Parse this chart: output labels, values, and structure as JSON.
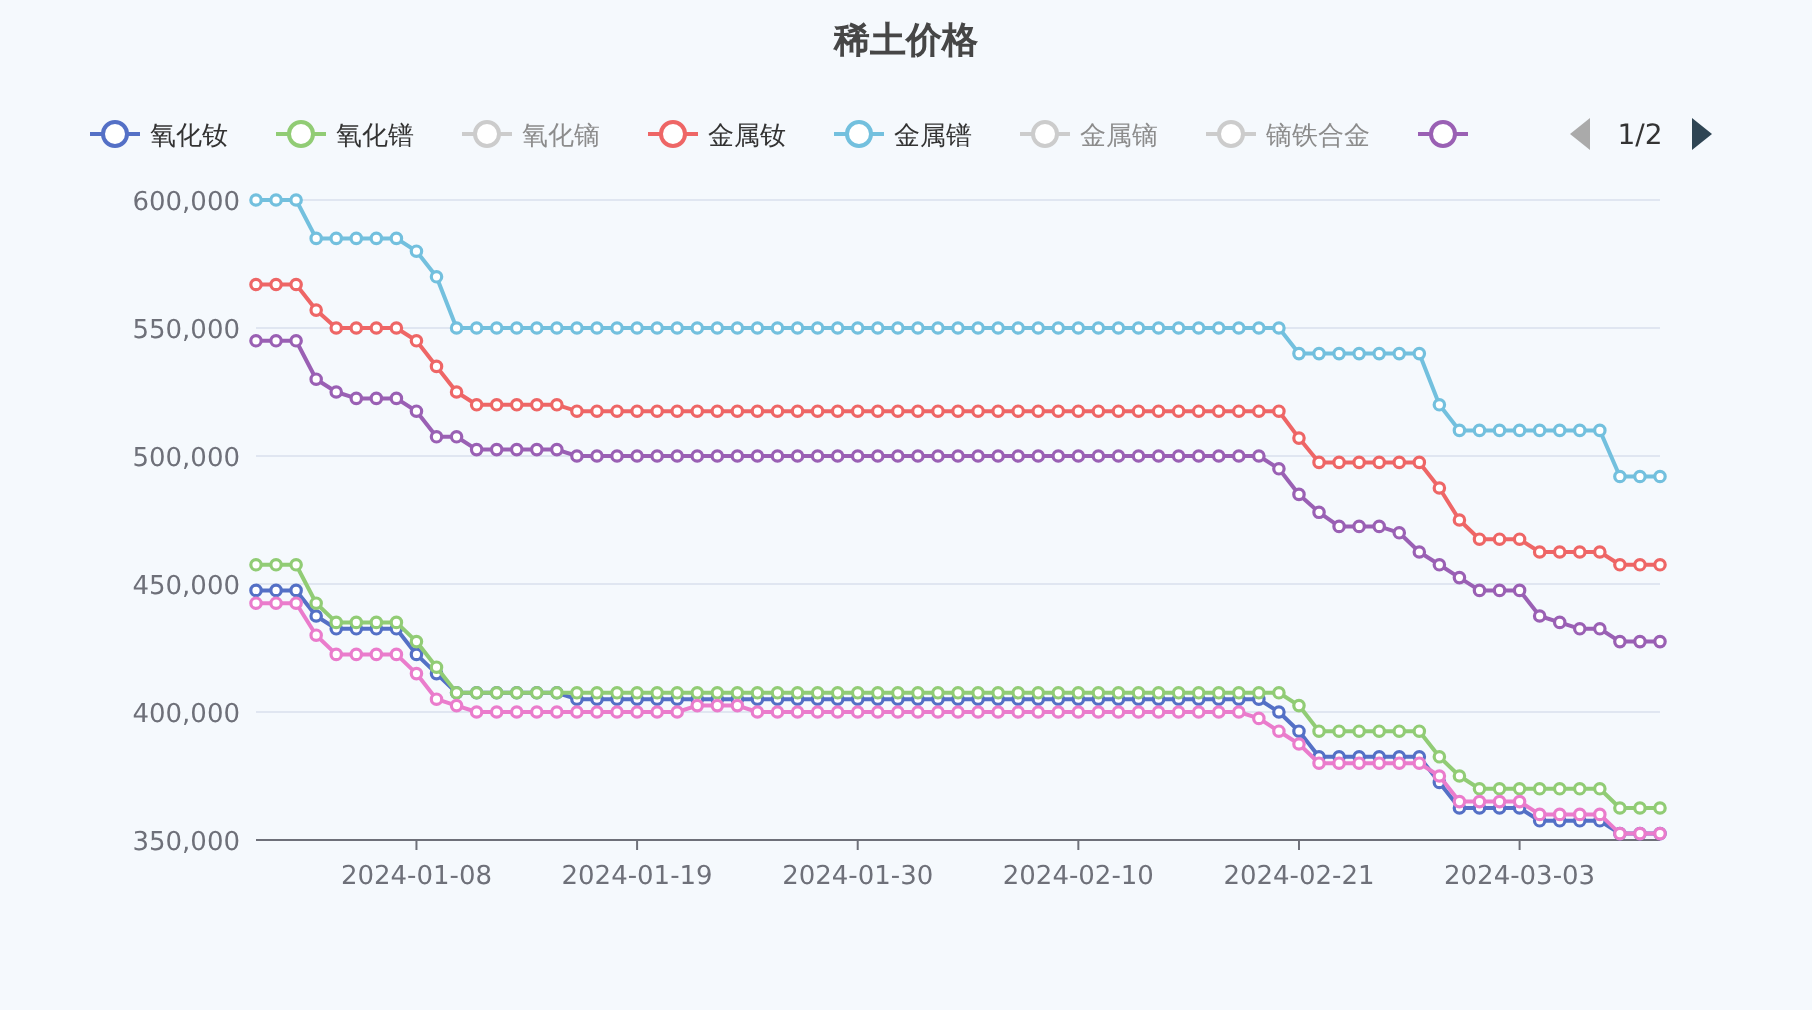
{
  "chart_data": {
    "type": "line",
    "title": "稀土价格",
    "x": [
      "2023-12-31",
      "2024-01-01",
      "2024-01-02",
      "2024-01-03",
      "2024-01-04",
      "2024-01-05",
      "2024-01-06",
      "2024-01-07",
      "2024-01-08",
      "2024-01-09",
      "2024-01-10",
      "2024-01-11",
      "2024-01-12",
      "2024-01-13",
      "2024-01-14",
      "2024-01-15",
      "2024-01-16",
      "2024-01-17",
      "2024-01-18",
      "2024-01-19",
      "2024-01-20",
      "2024-01-21",
      "2024-01-22",
      "2024-01-23",
      "2024-01-24",
      "2024-01-25",
      "2024-01-26",
      "2024-01-27",
      "2024-01-28",
      "2024-01-29",
      "2024-01-30",
      "2024-01-31",
      "2024-02-01",
      "2024-02-02",
      "2024-02-03",
      "2024-02-04",
      "2024-02-05",
      "2024-02-06",
      "2024-02-07",
      "2024-02-08",
      "2024-02-09",
      "2024-02-10",
      "2024-02-11",
      "2024-02-12",
      "2024-02-13",
      "2024-02-14",
      "2024-02-15",
      "2024-02-16",
      "2024-02-17",
      "2024-02-18",
      "2024-02-19",
      "2024-02-20",
      "2024-02-21",
      "2024-02-22",
      "2024-02-23",
      "2024-02-24",
      "2024-02-25",
      "2024-02-26",
      "2024-02-27",
      "2024-02-28",
      "2024-02-29",
      "2024-03-01",
      "2024-03-02",
      "2024-03-03",
      "2024-03-04",
      "2024-03-05",
      "2024-03-06",
      "2024-03-07",
      "2024-03-08",
      "2024-03-09",
      "2024-03-10"
    ],
    "series": [
      {
        "name": "氧化钕",
        "color": "#5470c6",
        "values": [
          447500,
          447500,
          447500,
          437500,
          432500,
          432500,
          432500,
          432500,
          422500,
          415000,
          407500,
          407500,
          407500,
          407500,
          407500,
          407500,
          405000,
          405000,
          405000,
          405000,
          405000,
          405000,
          405000,
          405000,
          405000,
          405000,
          405000,
          405000,
          405000,
          405000,
          405000,
          405000,
          405000,
          405000,
          405000,
          405000,
          405000,
          405000,
          405000,
          405000,
          405000,
          405000,
          405000,
          405000,
          405000,
          405000,
          405000,
          405000,
          405000,
          405000,
          405000,
          400000,
          392500,
          382500,
          382500,
          382500,
          382500,
          382500,
          382500,
          372500,
          362500,
          362500,
          362500,
          362500,
          357500,
          357500,
          357500,
          357500,
          352500,
          352500,
          352500
        ]
      },
      {
        "name": "氧化镨",
        "color": "#91cc75",
        "values": [
          457500,
          457500,
          457500,
          442500,
          435000,
          435000,
          435000,
          435000,
          427500,
          417500,
          407500,
          407500,
          407500,
          407500,
          407500,
          407500,
          407500,
          407500,
          407500,
          407500,
          407500,
          407500,
          407500,
          407500,
          407500,
          407500,
          407500,
          407500,
          407500,
          407500,
          407500,
          407500,
          407500,
          407500,
          407500,
          407500,
          407500,
          407500,
          407500,
          407500,
          407500,
          407500,
          407500,
          407500,
          407500,
          407500,
          407500,
          407500,
          407500,
          407500,
          407500,
          407500,
          402500,
          392500,
          392500,
          392500,
          392500,
          392500,
          392500,
          382500,
          375000,
          370000,
          370000,
          370000,
          370000,
          370000,
          370000,
          370000,
          362500,
          362500,
          362500
        ]
      },
      {
        "name": "氧化镝",
        "color": "#cccccc",
        "values": [
          null,
          null,
          null,
          null,
          null,
          null,
          null,
          null,
          null,
          null,
          null,
          null,
          null,
          null,
          null,
          null,
          null,
          null,
          null,
          null,
          null,
          null,
          null,
          null,
          null,
          null,
          null,
          null,
          null,
          null,
          null,
          null,
          null,
          null,
          null,
          null,
          null,
          null,
          null,
          null,
          null,
          null,
          null,
          null,
          null,
          null,
          null,
          null,
          null,
          null,
          null,
          null,
          null,
          null,
          null,
          null,
          null,
          null,
          null,
          null,
          null,
          null,
          null,
          null,
          null,
          null,
          null,
          null,
          null,
          null,
          null
        ]
      },
      {
        "name": "金属钕",
        "color": "#ee6666",
        "values": [
          567000,
          567000,
          567000,
          557000,
          550000,
          550000,
          550000,
          550000,
          545000,
          535000,
          525000,
          520000,
          520000,
          520000,
          520000,
          520000,
          517500,
          517500,
          517500,
          517500,
          517500,
          517500,
          517500,
          517500,
          517500,
          517500,
          517500,
          517500,
          517500,
          517500,
          517500,
          517500,
          517500,
          517500,
          517500,
          517500,
          517500,
          517500,
          517500,
          517500,
          517500,
          517500,
          517500,
          517500,
          517500,
          517500,
          517500,
          517500,
          517500,
          517500,
          517500,
          517500,
          507000,
          497500,
          497500,
          497500,
          497500,
          497500,
          497500,
          487500,
          475000,
          467500,
          467500,
          467500,
          462500,
          462500,
          462500,
          462500,
          457500,
          457500,
          457500
        ]
      },
      {
        "name": "金属镨",
        "color": "#73c0de",
        "values": [
          600000,
          600000,
          600000,
          585000,
          585000,
          585000,
          585000,
          585000,
          580000,
          570000,
          550000,
          550000,
          550000,
          550000,
          550000,
          550000,
          550000,
          550000,
          550000,
          550000,
          550000,
          550000,
          550000,
          550000,
          550000,
          550000,
          550000,
          550000,
          550000,
          550000,
          550000,
          550000,
          550000,
          550000,
          550000,
          550000,
          550000,
          550000,
          550000,
          550000,
          550000,
          550000,
          550000,
          550000,
          550000,
          550000,
          550000,
          550000,
          550000,
          550000,
          550000,
          550000,
          540000,
          540000,
          540000,
          540000,
          540000,
          540000,
          540000,
          520000,
          510000,
          510000,
          510000,
          510000,
          510000,
          510000,
          510000,
          510000,
          492000,
          492000,
          492000
        ]
      },
      {
        "name": "金属镝",
        "color": "#cccccc",
        "values": [
          null,
          null,
          null,
          null,
          null,
          null,
          null,
          null,
          null,
          null,
          null,
          null,
          null,
          null,
          null,
          null,
          null,
          null,
          null,
          null,
          null,
          null,
          null,
          null,
          null,
          null,
          null,
          null,
          null,
          null,
          null,
          null,
          null,
          null,
          null,
          null,
          null,
          null,
          null,
          null,
          null,
          null,
          null,
          null,
          null,
          null,
          null,
          null,
          null,
          null,
          null,
          null,
          null,
          null,
          null,
          null,
          null,
          null,
          null,
          null,
          null,
          null,
          null,
          null,
          null,
          null,
          null,
          null,
          null,
          null,
          null
        ]
      },
      {
        "name": "镝铁合金",
        "color": "#cccccc",
        "values": [
          null,
          null,
          null,
          null,
          null,
          null,
          null,
          null,
          null,
          null,
          null,
          null,
          null,
          null,
          null,
          null,
          null,
          null,
          null,
          null,
          null,
          null,
          null,
          null,
          null,
          null,
          null,
          null,
          null,
          null,
          null,
          null,
          null,
          null,
          null,
          null,
          null,
          null,
          null,
          null,
          null,
          null,
          null,
          null,
          null,
          null,
          null,
          null,
          null,
          null,
          null,
          null,
          null,
          null,
          null,
          null,
          null,
          null,
          null,
          null,
          null,
          null,
          null,
          null,
          null,
          null,
          null,
          null,
          null,
          null,
          null
        ]
      },
      {
        "color": "#9a60b4",
        "values": [
          545000,
          545000,
          545000,
          530000,
          525000,
          522500,
          522500,
          522500,
          517500,
          507500,
          507500,
          502500,
          502500,
          502500,
          502500,
          502500,
          500000,
          500000,
          500000,
          500000,
          500000,
          500000,
          500000,
          500000,
          500000,
          500000,
          500000,
          500000,
          500000,
          500000,
          500000,
          500000,
          500000,
          500000,
          500000,
          500000,
          500000,
          500000,
          500000,
          500000,
          500000,
          500000,
          500000,
          500000,
          500000,
          500000,
          500000,
          500000,
          500000,
          500000,
          500000,
          495000,
          485000,
          478000,
          472500,
          472500,
          472500,
          470000,
          462500,
          457500,
          452500,
          447500,
          447500,
          447500,
          437500,
          435000,
          432500,
          432500,
          427500,
          427500,
          427500
        ]
      },
      {
        "color": "#ea7ccc",
        "values": [
          442500,
          442500,
          442500,
          430000,
          422500,
          422500,
          422500,
          422500,
          415000,
          405000,
          402500,
          400000,
          400000,
          400000,
          400000,
          400000,
          400000,
          400000,
          400000,
          400000,
          400000,
          400000,
          402500,
          402500,
          402500,
          400000,
          400000,
          400000,
          400000,
          400000,
          400000,
          400000,
          400000,
          400000,
          400000,
          400000,
          400000,
          400000,
          400000,
          400000,
          400000,
          400000,
          400000,
          400000,
          400000,
          400000,
          400000,
          400000,
          400000,
          400000,
          397500,
          392500,
          387500,
          380000,
          380000,
          380000,
          380000,
          380000,
          380000,
          375000,
          365000,
          365000,
          365000,
          365000,
          360000,
          360000,
          360000,
          360000,
          352500,
          352500,
          352500
        ]
      }
    ],
    "xlim": [
      "2023-12-31",
      "2024-03-10"
    ],
    "xticks": [
      "2024-01-08",
      "2024-01-19",
      "2024-01-30",
      "2024-02-10",
      "2024-02-21",
      "2024-03-03"
    ],
    "ylim": [
      350000,
      600000
    ],
    "yticks": [
      {
        "value": 350000,
        "label": "350,000"
      },
      {
        "value": 400000,
        "label": "400,000"
      },
      {
        "value": 450000,
        "label": "450,000"
      },
      {
        "value": 500000,
        "label": "500,000"
      },
      {
        "value": 550000,
        "label": "550,000"
      },
      {
        "value": 600000,
        "label": "600,000"
      }
    ],
    "grid": "y",
    "legend": "top",
    "marker": "circle",
    "line_style": "solid",
    "annotations": [
      "1/2"
    ]
  }
}
